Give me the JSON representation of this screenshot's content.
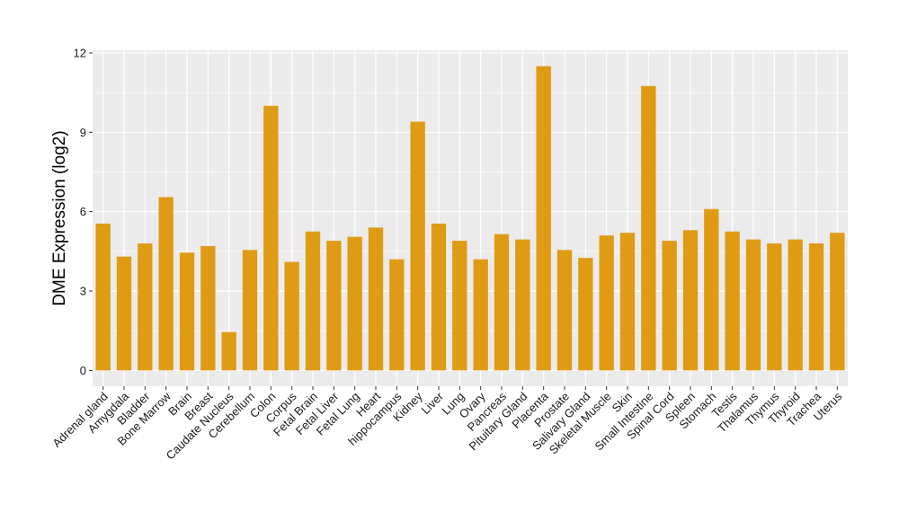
{
  "chart_data": {
    "type": "bar",
    "title": "",
    "xlabel": "",
    "ylabel": "DME Expression (log2)",
    "ylim": [
      -0.6,
      12.1
    ],
    "yticks": [
      0,
      3,
      6,
      9,
      12
    ],
    "grid": true,
    "bar_color": "#DE9B13",
    "panel_bg": "#EBEBEB",
    "grid_color": "#FFFFFF",
    "categories": [
      "Adrenal gland",
      "Amygdala",
      "Bladder",
      "Bone Marrow",
      "Brain",
      "Breast",
      "Caudate Nucleus",
      "Cerebellum",
      "Colon",
      "Corpus",
      "Fetal Brain",
      "Fetal Liver",
      "Fetal Lung",
      "Heart",
      "hippocampus",
      "Kidney",
      "Liver",
      "Lung",
      "Ovary",
      "Pancreas",
      "Pituitary Gland",
      "Placenta",
      "Prostate",
      "Salivary Gland",
      "Skeletal Muscle",
      "Skin",
      "Small Intestine",
      "Spinal Cord",
      "Spleen",
      "Stomach",
      "Testis",
      "Thalamus",
      "Thymus",
      "Thyroid",
      "Trachea",
      "Uterus"
    ],
    "values": [
      5.55,
      4.3,
      4.8,
      6.55,
      4.45,
      4.7,
      1.45,
      4.55,
      10.0,
      4.1,
      5.25,
      4.9,
      5.05,
      5.4,
      4.2,
      9.4,
      5.55,
      4.9,
      4.2,
      5.15,
      4.95,
      11.5,
      4.55,
      4.25,
      5.1,
      5.2,
      10.75,
      4.9,
      5.3,
      6.1,
      5.25,
      4.95,
      4.8,
      4.95,
      4.8,
      5.2
    ]
  }
}
